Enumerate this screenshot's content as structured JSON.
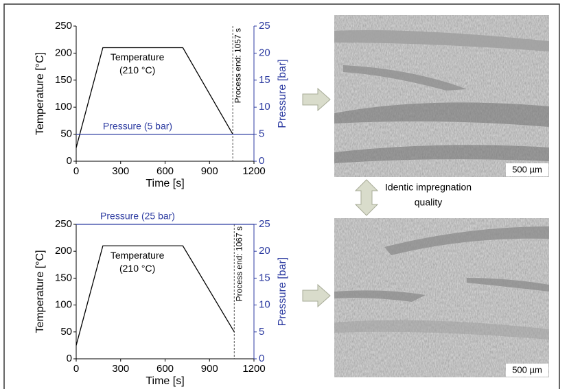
{
  "chart_data": [
    {
      "type": "line",
      "xlabel": "Time [s]",
      "ylabel": "Temperature [°C]",
      "y2label": "Pressure [bar]",
      "xlim": [
        0,
        1200
      ],
      "xticks": [
        0,
        300,
        600,
        900,
        1200
      ],
      "ylim": [
        0,
        250
      ],
      "yticks": [
        0,
        50,
        100,
        150,
        200,
        250
      ],
      "y2lim": [
        0,
        25
      ],
      "y2ticks": [
        0,
        5,
        10,
        15,
        20,
        25
      ],
      "series": [
        {
          "name": "Temperature",
          "color": "#000000",
          "x": [
            0,
            180,
            720,
            1057
          ],
          "values": [
            25,
            210,
            210,
            50
          ]
        },
        {
          "name": "Pressure",
          "color": "#2b3aa0",
          "axis": "y2",
          "x": [
            0,
            1200
          ],
          "values": [
            5,
            5
          ]
        }
      ],
      "annotations": {
        "temperature": [
          "Temperature",
          "(210 °C)"
        ],
        "pressure": "Pressure (5 bar)",
        "process_end": "Process end: 1057 s"
      },
      "vlines": [
        1057
      ]
    },
    {
      "type": "line",
      "xlabel": "Time [s]",
      "ylabel": "Temperature [°C]",
      "y2label": "Pressure [bar]",
      "xlim": [
        0,
        1200
      ],
      "xticks": [
        0,
        300,
        600,
        900,
        1200
      ],
      "ylim": [
        0,
        250
      ],
      "yticks": [
        0,
        50,
        100,
        150,
        200,
        250
      ],
      "y2lim": [
        0,
        25
      ],
      "y2ticks": [
        0,
        5,
        10,
        15,
        20,
        25
      ],
      "series": [
        {
          "name": "Temperature",
          "color": "#000000",
          "x": [
            0,
            180,
            720,
            1067
          ],
          "values": [
            25,
            210,
            210,
            50
          ]
        },
        {
          "name": "Pressure",
          "color": "#2b3aa0",
          "axis": "y2",
          "x": [
            0,
            1200
          ],
          "values": [
            25,
            25
          ]
        }
      ],
      "annotations": {
        "temperature": [
          "Temperature",
          "(210 °C)"
        ],
        "pressure": "Pressure (25 bar)",
        "process_end": "Process end: 1067 s"
      },
      "vlines": [
        1067
      ]
    }
  ],
  "images": [
    {
      "scale_label": "500 µm"
    },
    {
      "scale_label": "500 µm"
    }
  ],
  "comparison_label": [
    "Identic impregnation",
    "quality"
  ]
}
